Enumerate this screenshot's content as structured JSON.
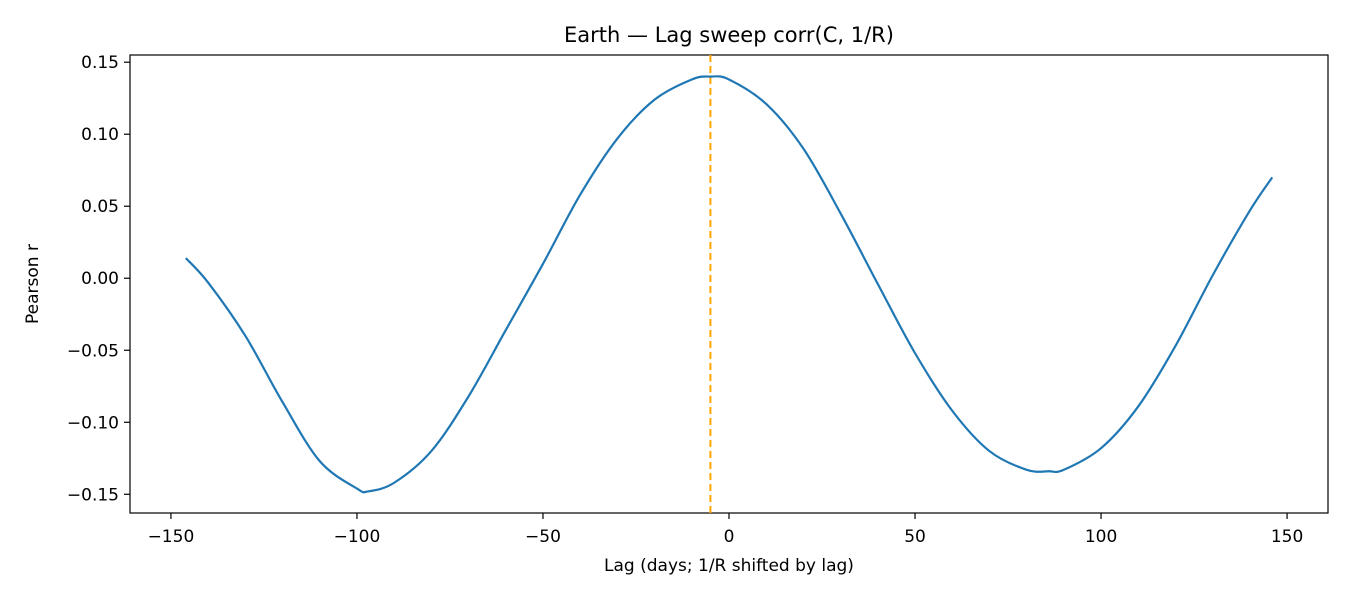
{
  "chart_data": {
    "type": "line",
    "title": "Earth — Lag sweep corr(C, 1/R)",
    "xlabel": "Lag (days; 1/R shifted by lag)",
    "ylabel": "Pearson r",
    "xlim": [
      -161,
      161
    ],
    "ylim": [
      -0.163,
      0.155
    ],
    "x_ticks": [
      -150,
      -100,
      -50,
      0,
      50,
      100,
      150
    ],
    "x_tick_labels": [
      "−150",
      "−100",
      "−50",
      "0",
      "50",
      "100",
      "150"
    ],
    "y_ticks": [
      0.15,
      0.1,
      0.05,
      0.0,
      -0.05,
      -0.1,
      -0.15
    ],
    "y_tick_labels": [
      "0.15",
      "0.10",
      "0.05",
      "0.00",
      "−0.05",
      "−0.10",
      "−0.15"
    ],
    "grid": false,
    "series": [
      {
        "color": "#1f77b4",
        "x": [
          -146,
          -140,
          -130,
          -120,
          -110,
          -100,
          -97,
          -90,
          -80,
          -70,
          -60,
          -50,
          -40,
          -30,
          -20,
          -10,
          -5,
          0,
          10,
          20,
          30,
          40,
          50,
          60,
          70,
          80,
          86,
          90,
          100,
          110,
          120,
          130,
          140,
          146
        ],
        "y": [
          0.014,
          -0.003,
          -0.04,
          -0.086,
          -0.127,
          -0.146,
          -0.148,
          -0.142,
          -0.12,
          -0.082,
          -0.036,
          0.01,
          0.058,
          0.097,
          0.124,
          0.138,
          0.14,
          0.138,
          0.121,
          0.09,
          0.045,
          -0.004,
          -0.052,
          -0.092,
          -0.12,
          -0.133,
          -0.134,
          -0.133,
          -0.118,
          -0.089,
          -0.047,
          0.002,
          0.047,
          0.07
        ]
      }
    ],
    "reference_line": {
      "x": -5,
      "color": "#ffa500",
      "style": "dashed"
    }
  }
}
